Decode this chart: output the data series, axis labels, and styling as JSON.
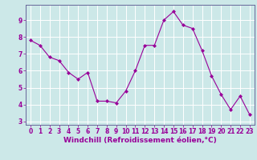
{
  "x": [
    0,
    1,
    2,
    3,
    4,
    5,
    6,
    7,
    8,
    9,
    10,
    11,
    12,
    13,
    14,
    15,
    16,
    17,
    18,
    19,
    20,
    21,
    22,
    23
  ],
  "y": [
    7.8,
    7.5,
    6.8,
    6.6,
    5.9,
    5.5,
    5.9,
    4.2,
    4.2,
    4.1,
    4.8,
    6.0,
    7.5,
    7.5,
    9.0,
    9.5,
    8.7,
    8.5,
    7.2,
    5.7,
    4.6,
    3.7,
    4.5,
    3.4
  ],
  "line_color": "#990099",
  "marker": "D",
  "marker_size": 2.0,
  "bg_color": "#cce8e8",
  "grid_color": "#ffffff",
  "xlabel": "Windchill (Refroidissement éolien,°C)",
  "xlim": [
    -0.5,
    23.5
  ],
  "ylim": [
    2.8,
    9.9
  ],
  "yticks": [
    3,
    4,
    5,
    6,
    7,
    8,
    9
  ],
  "xticks": [
    0,
    1,
    2,
    3,
    4,
    5,
    6,
    7,
    8,
    9,
    10,
    11,
    12,
    13,
    14,
    15,
    16,
    17,
    18,
    19,
    20,
    21,
    22,
    23
  ],
  "tick_fontsize": 5.5,
  "xlabel_fontsize": 6.5,
  "spine_color": "#666699",
  "linewidth": 0.8
}
